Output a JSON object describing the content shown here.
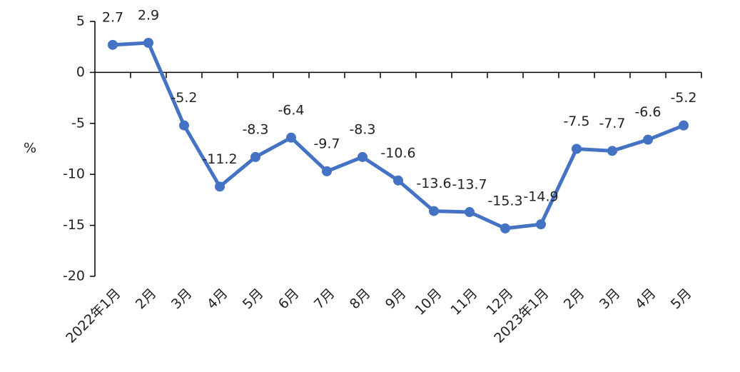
{
  "chart_data": {
    "type": "line",
    "y_label": "%",
    "categories": [
      "2022年1月",
      "2月",
      "3月",
      "4月",
      "5月",
      "6月",
      "7月",
      "8月",
      "9月",
      "10月",
      "11月",
      "12月",
      "2023年1月",
      "2月",
      "3月",
      "4月",
      "5月"
    ],
    "values": [
      2.7,
      2.9,
      -5.2,
      -11.2,
      -8.3,
      -6.4,
      -9.7,
      -8.3,
      -10.6,
      -13.6,
      -13.7,
      -15.3,
      -14.9,
      -7.5,
      -7.7,
      -6.6,
      -5.2
    ],
    "color": "#4472c4",
    "ylim": [
      -20,
      5
    ],
    "yticks": [
      -20,
      -15,
      -10,
      -5,
      0,
      5
    ]
  }
}
